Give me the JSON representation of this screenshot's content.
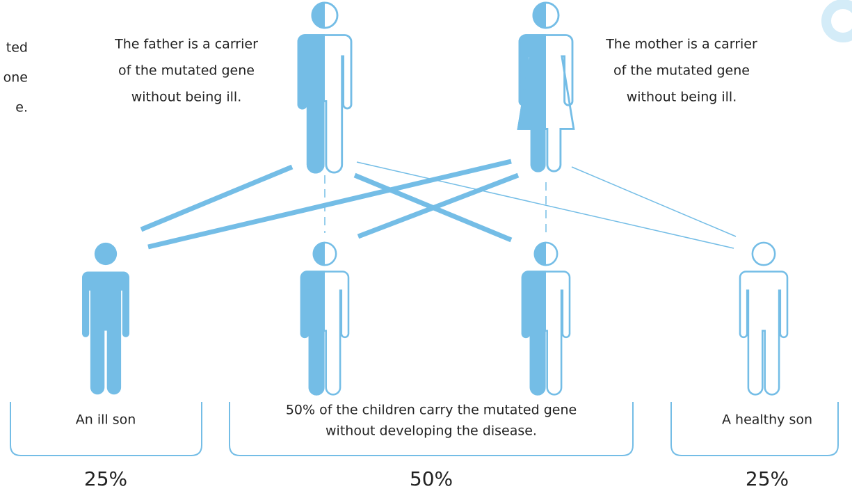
{
  "intro_fragment": {
    "lines": [
      "ted",
      "one",
      "e."
    ]
  },
  "parents": {
    "father": {
      "lines": [
        "The father is a carrier",
        "of the mutated gene",
        "without being ill."
      ]
    },
    "mother": {
      "lines": [
        "The mother is a carrier",
        "of the mutated gene",
        "without being ill."
      ]
    }
  },
  "children": [
    {
      "label": [
        "An ill son"
      ],
      "percent": "25%"
    },
    {
      "label": [
        "50% of the children carry the mutated gene",
        "without developing the disease."
      ],
      "percent": "50%"
    },
    {
      "label": [
        "A healthy son"
      ],
      "percent": "25%"
    }
  ]
}
